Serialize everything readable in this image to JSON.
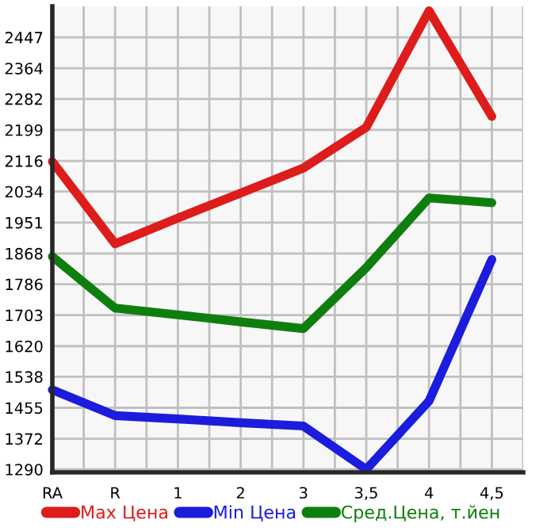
{
  "chart_data": {
    "type": "line",
    "categories": [
      "RA",
      "R",
      "1",
      "2",
      "3",
      "3,5",
      "4",
      "4,5"
    ],
    "series": [
      {
        "name": "Max Цена",
        "color": "#dd1c1c",
        "values": [
          2114,
          1894,
          1963,
          2030,
          2097,
          2206,
          2518,
          2235
        ]
      },
      {
        "name": "Min Цена",
        "color": "#1c1cdd",
        "values": [
          1503,
          1434,
          1425,
          1415,
          1406,
          1290,
          1473,
          1852
        ]
      },
      {
        "name": "Сред.Цена, т.йен",
        "color": "#0e7f0e",
        "values": [
          1860,
          1722,
          1704,
          1685,
          1667,
          1830,
          2017,
          2004
        ]
      }
    ],
    "ylim": [
      1282,
      2530
    ],
    "yticks": [
      1290,
      1372,
      1455,
      1538,
      1620,
      1703,
      1786,
      1868,
      1951,
      2034,
      2116,
      2199,
      2282,
      2364,
      2447
    ],
    "grid": true,
    "legend": "bottom",
    "marker": "none",
    "line_style": "solid"
  }
}
